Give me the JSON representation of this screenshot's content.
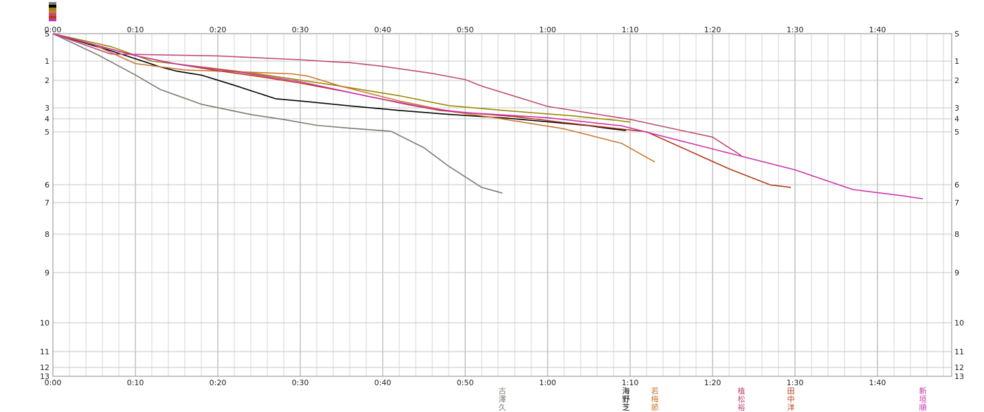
{
  "chart_data": {
    "type": "line",
    "x_ticks": [
      "0:00",
      "0:10",
      "0:20",
      "0:30",
      "0:40",
      "0:50",
      "1:00",
      "1:10",
      "1:20",
      "1:30",
      "1:40"
    ],
    "xlim": [
      0,
      109
    ],
    "y_ticks": [
      "S",
      "1",
      "2",
      "3",
      "4",
      "5",
      "6",
      "7",
      "8",
      "9",
      "10",
      "11",
      "12",
      "13"
    ],
    "grid": true,
    "series": [
      {
        "name": "古澤久",
        "color": "#7a7a6e",
        "x": [
          0,
          5.5,
          10,
          13,
          18,
          24,
          28,
          32,
          36,
          41,
          45,
          48,
          52,
          54.5
        ],
        "y": [
          0,
          0.78,
          1.72,
          2.33,
          2.87,
          3.61,
          4.06,
          4.5,
          4.72,
          4.96,
          5.3,
          5.65,
          6.15,
          6.47
        ]
      },
      {
        "name": "海野芝",
        "color": "#000000",
        "x": [
          0,
          7,
          13,
          15,
          18,
          22,
          27,
          31,
          36,
          42,
          48,
          55,
          61,
          65,
          67,
          69.5
        ],
        "y": [
          0,
          0.62,
          1.3,
          1.52,
          1.73,
          2.18,
          2.67,
          2.78,
          2.93,
          3.24,
          3.6,
          3.94,
          4.29,
          4.52,
          4.71,
          4.9
        ]
      },
      {
        "name": "",
        "color": "#9a8800",
        "x": [
          0,
          7,
          12,
          18,
          24,
          34,
          42,
          48,
          55,
          63,
          68.5,
          70
        ],
        "y": [
          0,
          0.47,
          1.0,
          1.3,
          1.61,
          2.17,
          2.56,
          2.92,
          3.26,
          3.73,
          4.13,
          4.25
        ]
      },
      {
        "name": "若梅節",
        "color": "#cc7730",
        "x": [
          0,
          5,
          10,
          16,
          24,
          29,
          31,
          35,
          42,
          48,
          54,
          62,
          69,
          73
        ],
        "y": [
          0,
          0.41,
          1.13,
          1.46,
          1.58,
          1.66,
          1.79,
          2.22,
          2.75,
          3.3,
          3.95,
          4.77,
          5.22,
          5.57
        ]
      },
      {
        "name": "植松裕",
        "color": "#c04a78",
        "x": [
          0,
          7,
          20,
          30,
          34,
          36,
          40,
          46,
          50,
          52,
          60,
          70,
          80,
          83.5
        ],
        "y": [
          0,
          0.74,
          0.81,
          0.95,
          1.04,
          1.08,
          1.27,
          1.64,
          1.96,
          2.21,
          2.95,
          4.05,
          5.1,
          5.45
        ]
      },
      {
        "name": "田中洋",
        "color": "#b43a18",
        "x": [
          0,
          10,
          15,
          20,
          25,
          30,
          36,
          43,
          47,
          56,
          62,
          72,
          82,
          87,
          89.5
        ],
        "y": [
          0,
          0.8,
          1.15,
          1.5,
          1.8,
          2.1,
          2.44,
          2.88,
          3.25,
          3.8,
          4.29,
          5.0,
          5.7,
          6.01,
          6.15
        ]
      },
      {
        "name": "新垣順",
        "color": "#cc33aa",
        "x": [
          0,
          10,
          15,
          23,
          30,
          38,
          46,
          50,
          60,
          69,
          90,
          97,
          103,
          105.5
        ],
        "y": [
          0,
          0.8,
          1.15,
          1.6,
          2.05,
          2.57,
          3.09,
          3.43,
          3.9,
          4.54,
          5.72,
          6.27,
          6.62,
          6.79
        ]
      }
    ]
  }
}
